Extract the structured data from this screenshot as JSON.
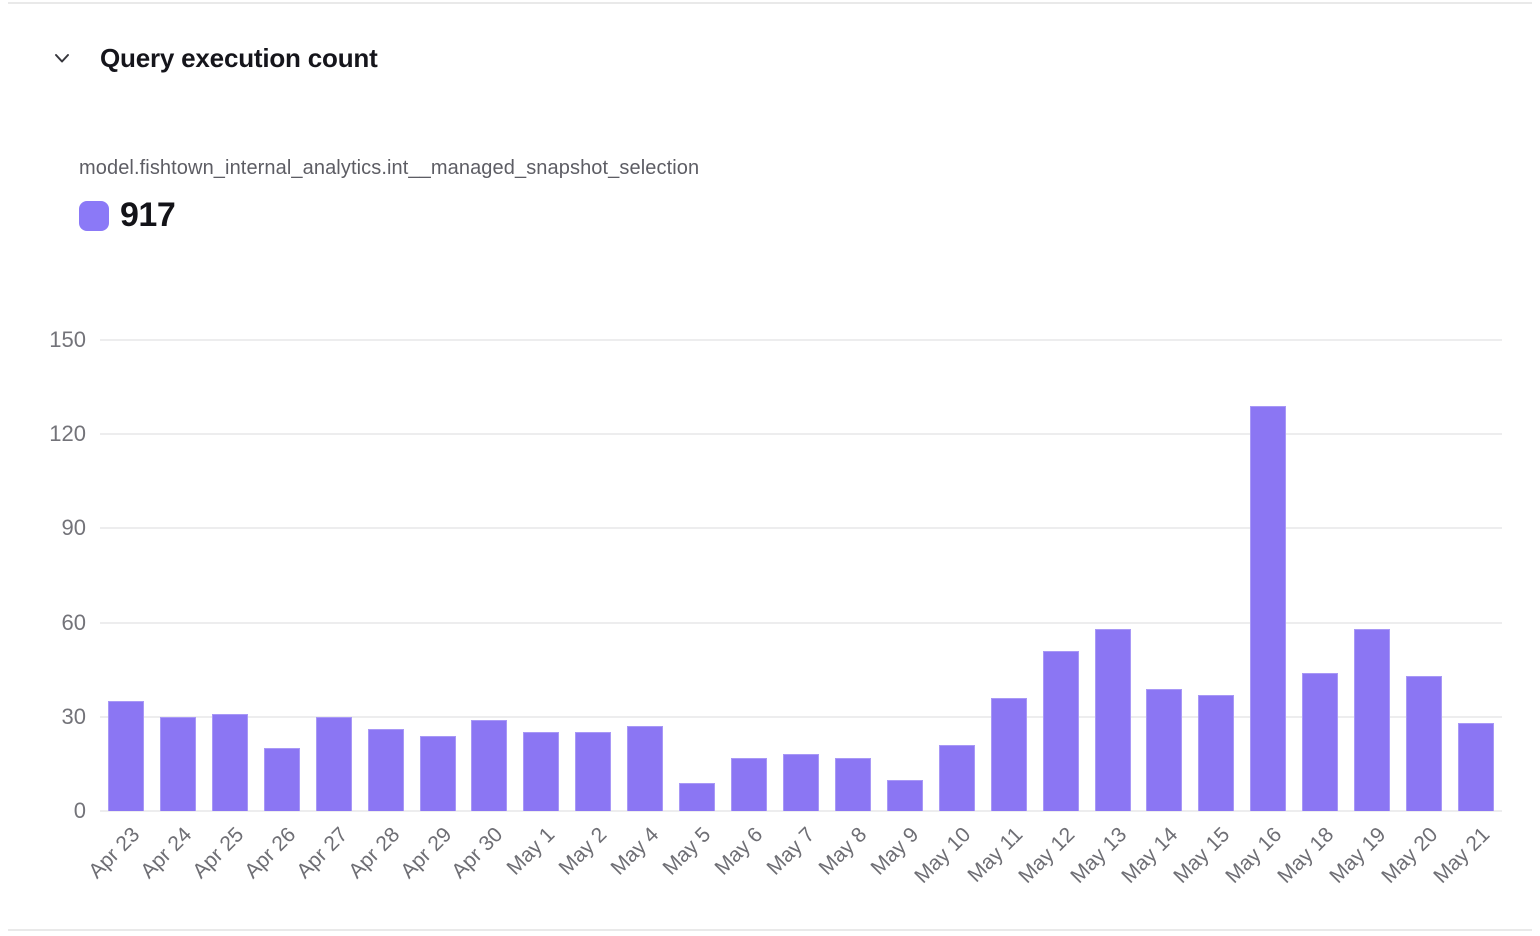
{
  "header": {
    "title": "Query execution count",
    "collapse_icon": "chevron-down-icon"
  },
  "legend": {
    "series_name": "model.fishtown_internal_analytics.int__managed_snapshot_selection",
    "total": "917",
    "swatch_color": "#8b79f7"
  },
  "chart_data": {
    "type": "bar",
    "title": "Query execution count",
    "categories": [
      "Apr 23",
      "Apr 24",
      "Apr 25",
      "Apr 26",
      "Apr 27",
      "Apr 28",
      "Apr 29",
      "Apr 30",
      "May 1",
      "May 2",
      "May 4",
      "May 5",
      "May 6",
      "May 7",
      "May 8",
      "May 9",
      "May 10",
      "May 11",
      "May 12",
      "May 13",
      "May 14",
      "May 15",
      "May 16",
      "May 18",
      "May 19",
      "May 20",
      "May 21"
    ],
    "series": [
      {
        "name": "model.fishtown_internal_analytics.int__managed_snapshot_selection",
        "total": 917,
        "color": "#8b76f3",
        "values": [
          35,
          30,
          31,
          20,
          30,
          26,
          24,
          29,
          25,
          25,
          27,
          9,
          17,
          18,
          17,
          10,
          21,
          36,
          51,
          58,
          39,
          37,
          129,
          44,
          58,
          43,
          28
        ]
      }
    ],
    "xlabel": "",
    "ylabel": "",
    "ylim": [
      0,
      150
    ],
    "yticks": [
      0,
      30,
      60,
      90,
      120,
      150
    ],
    "grid": true,
    "gridline_color": "#ededee",
    "x_tick_rotation": 45,
    "legend_position": "top-left"
  },
  "colors": {
    "background": "#ffffff",
    "divider": "#e9e9e9",
    "axis_label_color": "#737379",
    "x_label_color": "#6e6e74",
    "title_color": "#15151b",
    "series_label_color": "#5d5d64"
  }
}
